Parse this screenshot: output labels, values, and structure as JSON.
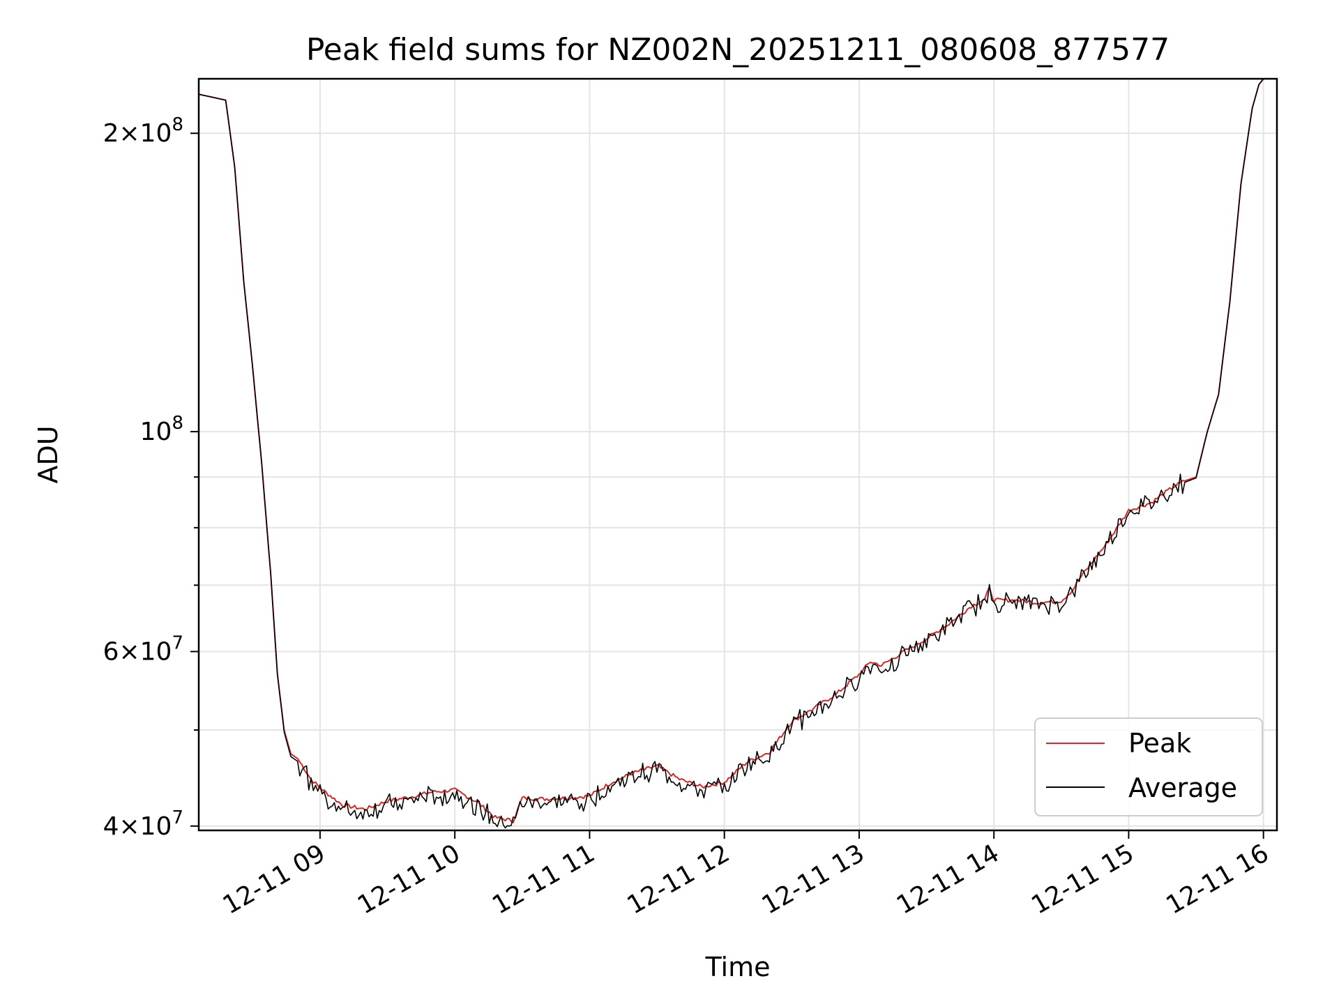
{
  "chart_data": {
    "type": "line",
    "title": "Peak field sums for NZ002N_20251211_080608_877577",
    "xlabel": "Time",
    "ylabel": "ADU",
    "yscale": "log",
    "grid": true,
    "legend_position": "lower-right",
    "xlim": [
      "2025-12-11 08:06",
      "2025-12-11 16:06"
    ],
    "ylim": [
      39600000,
      227000000
    ],
    "x_ticks": [
      {
        "value": "2025-12-11 09:00",
        "label": "12-11 09"
      },
      {
        "value": "2025-12-11 10:00",
        "label": "12-11 10"
      },
      {
        "value": "2025-12-11 11:00",
        "label": "12-11 11"
      },
      {
        "value": "2025-12-11 12:00",
        "label": "12-11 12"
      },
      {
        "value": "2025-12-11 13:00",
        "label": "12-11 13"
      },
      {
        "value": "2025-12-11 14:00",
        "label": "12-11 14"
      },
      {
        "value": "2025-12-11 15:00",
        "label": "12-11 15"
      },
      {
        "value": "2025-12-11 16:00",
        "label": "12-11 16"
      }
    ],
    "y_major_ticks": [
      {
        "value": 40000000,
        "mantissa": "4",
        "times": "×",
        "base": "10",
        "exp": "7"
      },
      {
        "value": 60000000,
        "mantissa": "6",
        "times": "×",
        "base": "10",
        "exp": "7"
      },
      {
        "value": 100000000,
        "mantissa": "",
        "times": "",
        "base": "10",
        "exp": "8"
      },
      {
        "value": 200000000,
        "mantissa": "2",
        "times": "×",
        "base": "10",
        "exp": "8"
      }
    ],
    "y_minor_ticks": [
      50000000,
      70000000,
      80000000,
      90000000
    ],
    "x": [
      "2025-12-11 08:06",
      "2025-12-11 08:10",
      "2025-12-11 08:18",
      "2025-12-11 08:22",
      "2025-12-11 08:26",
      "2025-12-11 08:30",
      "2025-12-11 08:34",
      "2025-12-11 08:38",
      "2025-12-11 08:41",
      "2025-12-11 08:44",
      "2025-12-11 08:47",
      "2025-12-11 08:50",
      "2025-12-11 08:53",
      "2025-12-11 08:56",
      "2025-12-11 09:00",
      "2025-12-11 09:10",
      "2025-12-11 09:20",
      "2025-12-11 09:30",
      "2025-12-11 09:40",
      "2025-12-11 09:50",
      "2025-12-11 10:00",
      "2025-12-11 10:10",
      "2025-12-11 10:18",
      "2025-12-11 10:26",
      "2025-12-11 10:30",
      "2025-12-11 10:40",
      "2025-12-11 10:50",
      "2025-12-11 11:00",
      "2025-12-11 11:10",
      "2025-12-11 11:20",
      "2025-12-11 11:30",
      "2025-12-11 11:40",
      "2025-12-11 11:50",
      "2025-12-11 12:00",
      "2025-12-11 12:10",
      "2025-12-11 12:20",
      "2025-12-11 12:30",
      "2025-12-11 12:40",
      "2025-12-11 12:50",
      "2025-12-11 13:00",
      "2025-12-11 13:05",
      "2025-12-11 13:10",
      "2025-12-11 13:20",
      "2025-12-11 13:30",
      "2025-12-11 13:40",
      "2025-12-11 13:50",
      "2025-12-11 13:56",
      "2025-12-11 13:58",
      "2025-12-11 14:00",
      "2025-12-11 14:10",
      "2025-12-11 14:20",
      "2025-12-11 14:30",
      "2025-12-11 14:35",
      "2025-12-11 14:38",
      "2025-12-11 14:40",
      "2025-12-11 14:50",
      "2025-12-11 15:00",
      "2025-12-11 15:10",
      "2025-12-11 15:20",
      "2025-12-11 15:25",
      "2025-12-11 15:30",
      "2025-12-11 15:35",
      "2025-12-11 15:40",
      "2025-12-11 15:45",
      "2025-12-11 15:50",
      "2025-12-11 15:55",
      "2025-12-11 15:58",
      "2025-12-11 16:00",
      "2025-12-11 16:06"
    ],
    "series": [
      {
        "name": "Peak",
        "color": "#d62728",
        "values": [
          219000000,
          218000000,
          216000000,
          185000000,
          142000000,
          116000000,
          93000000,
          72000000,
          57000000,
          50000000,
          47300000,
          46800000,
          45700000,
          44600000,
          43700000,
          42000000,
          41600000,
          42400000,
          42800000,
          43300000,
          43500000,
          42300000,
          40800000,
          40500000,
          42700000,
          42600000,
          42700000,
          42900000,
          44300000,
          45300000,
          46000000,
          44600000,
          43800000,
          44300000,
          46400000,
          47500000,
          51000000,
          52600000,
          54400000,
          56900000,
          58600000,
          58100000,
          60000000,
          61800000,
          64000000,
          66700000,
          67800000,
          69500000,
          67600000,
          67600000,
          67200000,
          67500000,
          69200000,
          71000000,
          72000000,
          77000000,
          83300000,
          84800000,
          88000000,
          89200000,
          90000000,
          100000000,
          109000000,
          135000000,
          178000000,
          212000000,
          224000000,
          227000000,
          227000000
        ]
      },
      {
        "name": "Average",
        "color": "#000000",
        "values": [
          219000000,
          218000000,
          216000000,
          185000000,
          142000000,
          116000000,
          93000000,
          72000000,
          57000000,
          49800000,
          47000000,
          46500000,
          45300000,
          44200000,
          43300000,
          41500000,
          41200000,
          42000000,
          42400000,
          42900000,
          43100000,
          41900000,
          40400000,
          40100000,
          42300000,
          42200000,
          42300000,
          42500000,
          43900000,
          44900000,
          45700000,
          44200000,
          43400000,
          43900000,
          46000000,
          47100000,
          50600000,
          52200000,
          54000000,
          56500000,
          58200000,
          57700000,
          59600000,
          61400000,
          63600000,
          66300000,
          67400000,
          69100000,
          67200000,
          67200000,
          66800000,
          67100000,
          68800000,
          70600000,
          71600000,
          76700000,
          83000000,
          84500000,
          87700000,
          88900000,
          89800000,
          100000000,
          109000000,
          135000000,
          178000000,
          212000000,
          224000000,
          227000000,
          227000000
        ]
      }
    ]
  }
}
